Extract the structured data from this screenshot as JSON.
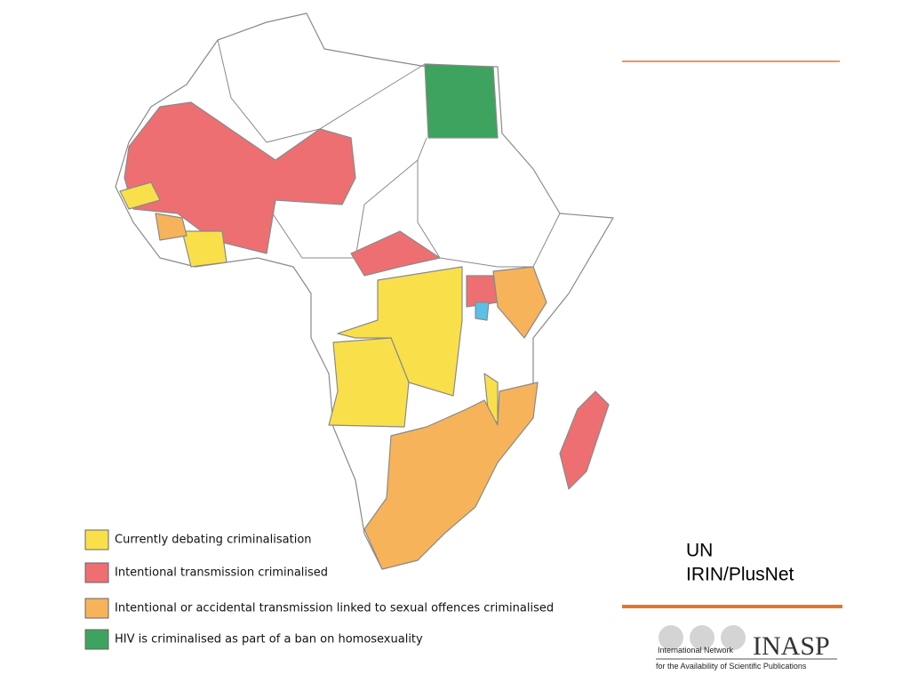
{
  "legend": {
    "items": [
      {
        "label": "Currently debating criminalisation",
        "color": "#f9e04b"
      },
      {
        "label": "Intentional transmission criminalised",
        "color": "#ee6f72"
      },
      {
        "label": "Intentional or accidental transmission linked to sexual offences criminalised",
        "color": "#f7b35a"
      },
      {
        "label": "HIV is criminalised as part of a ban on homosexuality",
        "color": "#3ea35f"
      }
    ]
  },
  "source": {
    "lines": [
      "UN",
      "IRIN/PlusNet"
    ]
  },
  "logo": {
    "network": "International Network",
    "name": "INASP",
    "tagline": "for the Availability of Scientific Publications"
  }
}
